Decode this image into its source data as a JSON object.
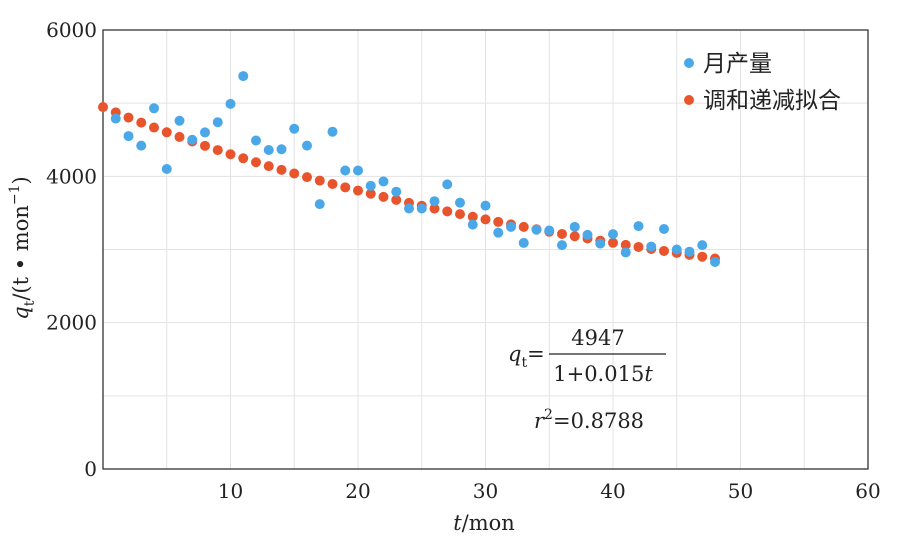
{
  "chart_data": {
    "type": "scatter",
    "xlabel": {
      "var": "t",
      "unit": "/mon"
    },
    "ylabel": {
      "var": "q",
      "sub": "t",
      "unit_pre": "/(t • mon",
      "unit_sup": "−1",
      "unit_post": ")"
    },
    "xlim": [
      0,
      60
    ],
    "ylim": [
      0,
      6000
    ],
    "xticks": [
      10,
      20,
      30,
      40,
      50,
      60
    ],
    "yticks": [
      0,
      2000,
      4000,
      6000
    ],
    "x_minor_step": 5,
    "y_minor_step": 1000,
    "grid": true,
    "legend_position": "top-right",
    "colors": {
      "monthly": "#4aa8e8",
      "fit": "#e8552d"
    },
    "series": [
      {
        "name": "月产量",
        "kind": "scatter",
        "x": [
          1,
          2,
          3,
          4,
          5,
          6,
          7,
          8,
          9,
          10,
          11,
          12,
          13,
          14,
          15,
          16,
          17,
          18,
          19,
          20,
          21,
          22,
          23,
          24,
          25,
          26,
          27,
          28,
          29,
          30,
          31,
          32,
          33,
          34,
          35,
          36,
          37,
          38,
          39,
          40,
          41,
          42,
          43,
          44,
          45,
          46,
          47,
          48
        ],
        "y": [
          4790,
          4550,
          4420,
          4930,
          4100,
          4760,
          4500,
          4600,
          4740,
          4990,
          5370,
          4490,
          4360,
          4370,
          4650,
          4420,
          3620,
          4610,
          4080,
          4080,
          3870,
          3930,
          3790,
          3560,
          3560,
          3660,
          3890,
          3640,
          3340,
          3600,
          3230,
          3310,
          3090,
          3270,
          3260,
          3060,
          3310,
          3200,
          3080,
          3210,
          2960,
          3320,
          3040,
          3280,
          3000,
          2970,
          3060,
          2830
        ]
      },
      {
        "name": "调和递减拟合",
        "kind": "fit",
        "x_start": 0,
        "x_end": 48,
        "x_step": 1,
        "params": {
          "q0": 4947,
          "D": 0.015
        }
      }
    ],
    "annotations": {
      "formula_lhs_var": "q",
      "formula_lhs_sub": "t",
      "formula_eq": "=",
      "numerator": "4947",
      "denominator_prefix": "1+0.015",
      "denominator_var": "t",
      "r2_var": "r",
      "r2_sup": "2",
      "r2_value": "=0.8788"
    }
  }
}
